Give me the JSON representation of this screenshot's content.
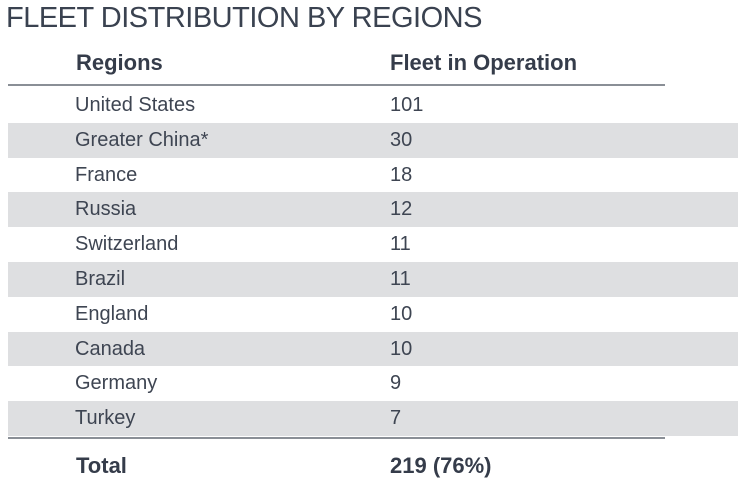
{
  "title": "FLEET DISTRIBUTION BY REGIONS",
  "table": {
    "headers": {
      "region": "Regions",
      "fleet": "Fleet in Operation"
    },
    "rows": [
      {
        "region": "United States",
        "fleet": "101"
      },
      {
        "region": "Greater China*",
        "fleet": "30"
      },
      {
        "region": "France",
        "fleet": "18"
      },
      {
        "region": "Russia",
        "fleet": "12"
      },
      {
        "region": "Switzerland",
        "fleet": "11"
      },
      {
        "region": "Brazil",
        "fleet": "11"
      },
      {
        "region": "England",
        "fleet": "10"
      },
      {
        "region": "Canada",
        "fleet": "10"
      },
      {
        "region": "Germany",
        "fleet": "9"
      },
      {
        "region": "Turkey",
        "fleet": "7"
      }
    ],
    "total": {
      "label": "Total",
      "value": "219 (76%)"
    }
  },
  "colors": {
    "text": "#3e4552",
    "stripe": "#dedfe1",
    "rule": "#8a8f96"
  }
}
